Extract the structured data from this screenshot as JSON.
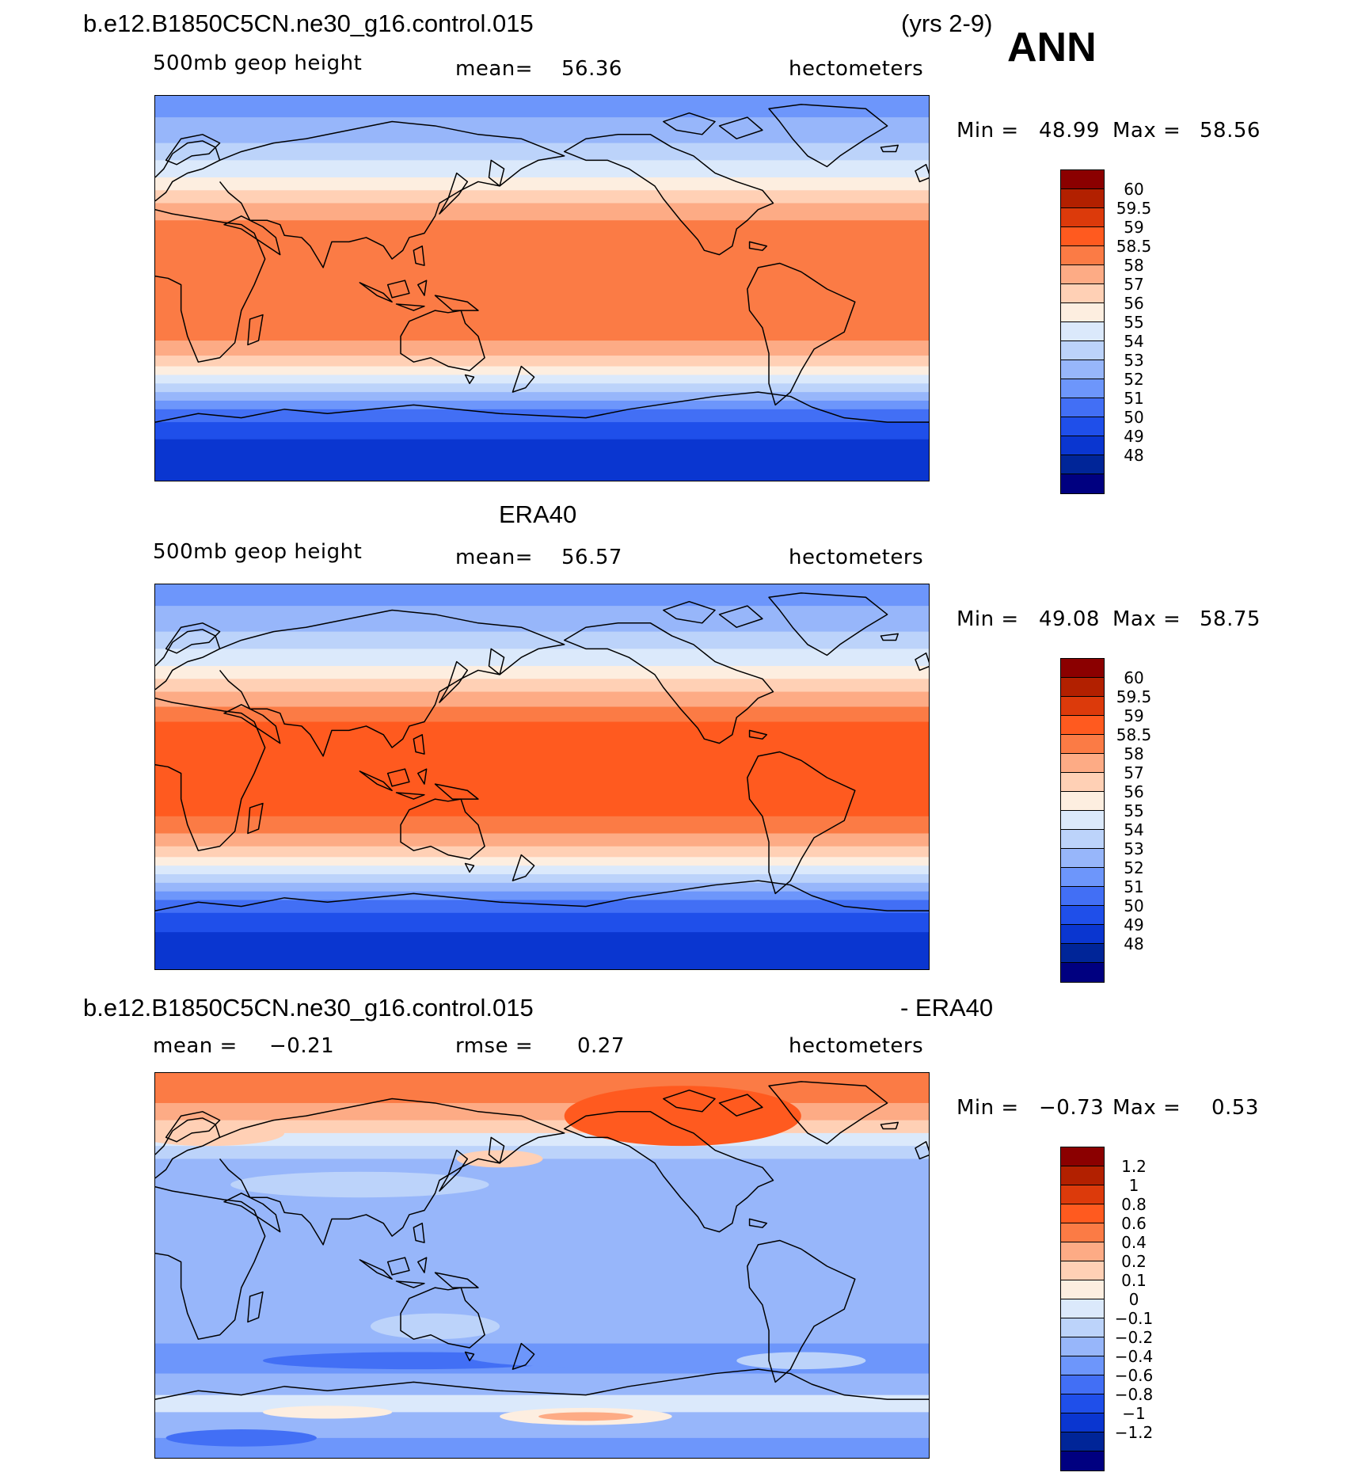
{
  "header": {
    "case_name": "b.e12.B1850C5CN.ne30_g16.control.015",
    "years": "(yrs 2-9)",
    "season": "ANN"
  },
  "panels": [
    {
      "id": "model",
      "title": "",
      "field_label": "500mb geop height",
      "stat_label": "mean=",
      "stat_value": "56.36",
      "units": "hectometers",
      "min_label": "Min =",
      "min_value": "48.99",
      "max_label": "Max =",
      "max_value": "58.56",
      "colorbar": {
        "labels": [
          "60",
          "59.5",
          "59",
          "58.5",
          "58",
          "57",
          "56",
          "55",
          "54",
          "53",
          "52",
          "51",
          "50",
          "49",
          "48"
        ],
        "colors": [
          "#8b0000",
          "#b22000",
          "#dc3a0b",
          "#ff5a1f",
          "#fb7b45",
          "#fdab85",
          "#ffd0b5",
          "#fdeee0",
          "#dbe9fb",
          "#bcd3fa",
          "#97b6fa",
          "#6d96fb",
          "#426ff5",
          "#1f4fea",
          "#0a36d0",
          "#002598",
          "#000080"
        ]
      },
      "map": {
        "bands": [
          {
            "lat_top": 90,
            "lat_bottom": 80,
            "color": "#6d96fb"
          },
          {
            "lat_top": 80,
            "lat_bottom": 68,
            "color": "#97b6fa"
          },
          {
            "lat_top": 68,
            "lat_bottom": 60,
            "color": "#bcd3fa"
          },
          {
            "lat_top": 60,
            "lat_bottom": 52,
            "color": "#dbe9fb"
          },
          {
            "lat_top": 52,
            "lat_bottom": 46,
            "color": "#fdeee0"
          },
          {
            "lat_top": 46,
            "lat_bottom": 40,
            "color": "#ffd0b5"
          },
          {
            "lat_top": 40,
            "lat_bottom": 32,
            "color": "#fdab85"
          },
          {
            "lat_top": 32,
            "lat_bottom": -24,
            "color": "#fb7b45"
          },
          {
            "lat_top": -24,
            "lat_bottom": -31,
            "color": "#fdab85"
          },
          {
            "lat_top": -31,
            "lat_bottom": -36,
            "color": "#ffd0b5"
          },
          {
            "lat_top": -36,
            "lat_bottom": -40,
            "color": "#fdeee0"
          },
          {
            "lat_top": -40,
            "lat_bottom": -44,
            "color": "#dbe9fb"
          },
          {
            "lat_top": -44,
            "lat_bottom": -48,
            "color": "#bcd3fa"
          },
          {
            "lat_top": -48,
            "lat_bottom": -52,
            "color": "#97b6fa"
          },
          {
            "lat_top": -52,
            "lat_bottom": -56,
            "color": "#6d96fb"
          },
          {
            "lat_top": -56,
            "lat_bottom": -62,
            "color": "#426ff5"
          },
          {
            "lat_top": -62,
            "lat_bottom": -70,
            "color": "#1f4fea"
          },
          {
            "lat_top": -70,
            "lat_bottom": -90,
            "color": "#0a36d0"
          }
        ]
      }
    },
    {
      "id": "obs",
      "title": "ERA40",
      "field_label": "500mb geop height",
      "stat_label": "mean=",
      "stat_value": "56.57",
      "units": "hectometers",
      "min_label": "Min =",
      "min_value": "49.08",
      "max_label": "Max =",
      "max_value": "58.75",
      "colorbar": {
        "labels": [
          "60",
          "59.5",
          "59",
          "58.5",
          "58",
          "57",
          "56",
          "55",
          "54",
          "53",
          "52",
          "51",
          "50",
          "49",
          "48"
        ],
        "colors": [
          "#8b0000",
          "#b22000",
          "#dc3a0b",
          "#ff5a1f",
          "#fb7b45",
          "#fdab85",
          "#ffd0b5",
          "#fdeee0",
          "#dbe9fb",
          "#bcd3fa",
          "#97b6fa",
          "#6d96fb",
          "#426ff5",
          "#1f4fea",
          "#0a36d0",
          "#002598",
          "#000080"
        ]
      },
      "map": {
        "bands": [
          {
            "lat_top": 90,
            "lat_bottom": 80,
            "color": "#6d96fb"
          },
          {
            "lat_top": 80,
            "lat_bottom": 68,
            "color": "#97b6fa"
          },
          {
            "lat_top": 68,
            "lat_bottom": 60,
            "color": "#bcd3fa"
          },
          {
            "lat_top": 60,
            "lat_bottom": 52,
            "color": "#dbe9fb"
          },
          {
            "lat_top": 52,
            "lat_bottom": 46,
            "color": "#fdeee0"
          },
          {
            "lat_top": 46,
            "lat_bottom": 40,
            "color": "#ffd0b5"
          },
          {
            "lat_top": 40,
            "lat_bottom": 33,
            "color": "#fdab85"
          },
          {
            "lat_top": 33,
            "lat_bottom": 26,
            "color": "#fb7b45"
          },
          {
            "lat_top": 26,
            "lat_bottom": -18,
            "color": "#ff5a1f"
          },
          {
            "lat_top": -18,
            "lat_bottom": -26,
            "color": "#fb7b45"
          },
          {
            "lat_top": -26,
            "lat_bottom": -32,
            "color": "#fdab85"
          },
          {
            "lat_top": -32,
            "lat_bottom": -37,
            "color": "#ffd0b5"
          },
          {
            "lat_top": -37,
            "lat_bottom": -41,
            "color": "#fdeee0"
          },
          {
            "lat_top": -41,
            "lat_bottom": -45,
            "color": "#dbe9fb"
          },
          {
            "lat_top": -45,
            "lat_bottom": -49,
            "color": "#bcd3fa"
          },
          {
            "lat_top": -49,
            "lat_bottom": -53,
            "color": "#97b6fa"
          },
          {
            "lat_top": -53,
            "lat_bottom": -57,
            "color": "#6d96fb"
          },
          {
            "lat_top": -57,
            "lat_bottom": -63,
            "color": "#426ff5"
          },
          {
            "lat_top": -63,
            "lat_bottom": -72,
            "color": "#1f4fea"
          },
          {
            "lat_top": -72,
            "lat_bottom": -90,
            "color": "#0a36d0"
          }
        ]
      }
    },
    {
      "id": "diff",
      "title_left": "b.e12.B1850C5CN.ne30_g16.control.015",
      "title_right": "- ERA40",
      "field_label": "mean =",
      "field_value": "−0.21",
      "stat_label": "rmse =",
      "stat_value": "0.27",
      "units": "hectometers",
      "min_label": "Min =",
      "min_value": "−0.73",
      "max_label": "Max =",
      "max_value": "0.53",
      "colorbar": {
        "labels": [
          "1.2",
          "1",
          "0.8",
          "0.6",
          "0.4",
          "0.2",
          "0.1",
          "0",
          "−0.1",
          "−0.2",
          "−0.4",
          "−0.6",
          "−0.8",
          "−1",
          "−1.2"
        ],
        "colors": [
          "#8b0000",
          "#b22000",
          "#dc3a0b",
          "#ff5a1f",
          "#fb7b45",
          "#fdab85",
          "#ffd0b5",
          "#fdeee0",
          "#dbe9fb",
          "#bcd3fa",
          "#97b6fa",
          "#6d96fb",
          "#426ff5",
          "#1f4fea",
          "#0a36d0",
          "#002598",
          "#000080"
        ]
      },
      "map": {
        "bands": [
          {
            "lat_top": 90,
            "lat_bottom": 76,
            "color": "#fb7b45"
          },
          {
            "lat_top": 76,
            "lat_bottom": 68,
            "color": "#fdab85"
          },
          {
            "lat_top": 68,
            "lat_bottom": 62,
            "color": "#ffd0b5"
          },
          {
            "lat_top": 62,
            "lat_bottom": 56,
            "color": "#dbe9fb"
          },
          {
            "lat_top": 56,
            "lat_bottom": 50,
            "color": "#bcd3fa"
          },
          {
            "lat_top": 50,
            "lat_bottom": -36,
            "color": "#97b6fa"
          },
          {
            "lat_top": -36,
            "lat_bottom": -50,
            "color": "#6d96fb"
          },
          {
            "lat_top": -50,
            "lat_bottom": -60,
            "color": "#97b6fa"
          },
          {
            "lat_top": -60,
            "lat_bottom": -68,
            "color": "#dbe9fb"
          },
          {
            "lat_top": -68,
            "lat_bottom": -80,
            "color": "#97b6fa"
          },
          {
            "lat_top": -80,
            "lat_bottom": -90,
            "color": "#6d96fb"
          }
        ],
        "patches": [
          {
            "lon": 245,
            "lat": 70,
            "rlon": 55,
            "rlat": 14,
            "color": "#ff5a1f"
          },
          {
            "lon": 25,
            "lat": 62,
            "rlon": 35,
            "rlat": 6,
            "color": "#ffd0b5"
          },
          {
            "lon": 160,
            "lat": 50,
            "rlon": 20,
            "rlat": 4,
            "color": "#ffd0b5"
          },
          {
            "lon": 95,
            "lat": 38,
            "rlon": 60,
            "rlat": 6,
            "color": "#bcd3fa"
          },
          {
            "lon": 130,
            "lat": -28,
            "rlon": 30,
            "rlat": 6,
            "color": "#bcd3fa"
          },
          {
            "lon": 120,
            "lat": -44,
            "rlon": 70,
            "rlat": 4,
            "color": "#426ff5"
          },
          {
            "lon": 200,
            "lat": -42,
            "rlon": 55,
            "rlat": 5,
            "color": "#6d96fb"
          },
          {
            "lon": 300,
            "lat": -44,
            "rlon": 30,
            "rlat": 4,
            "color": "#bcd3fa"
          },
          {
            "lon": 200,
            "lat": -70,
            "rlon": 40,
            "rlat": 4,
            "color": "#fdeee0"
          },
          {
            "lon": 200,
            "lat": -70,
            "rlon": 22,
            "rlat": 2,
            "color": "#fdab85"
          },
          {
            "lon": 80,
            "lat": -68,
            "rlon": 30,
            "rlat": 3,
            "color": "#fdeee0"
          },
          {
            "lon": 40,
            "lat": -80,
            "rlon": 35,
            "rlat": 4,
            "color": "#426ff5"
          }
        ]
      }
    }
  ]
}
